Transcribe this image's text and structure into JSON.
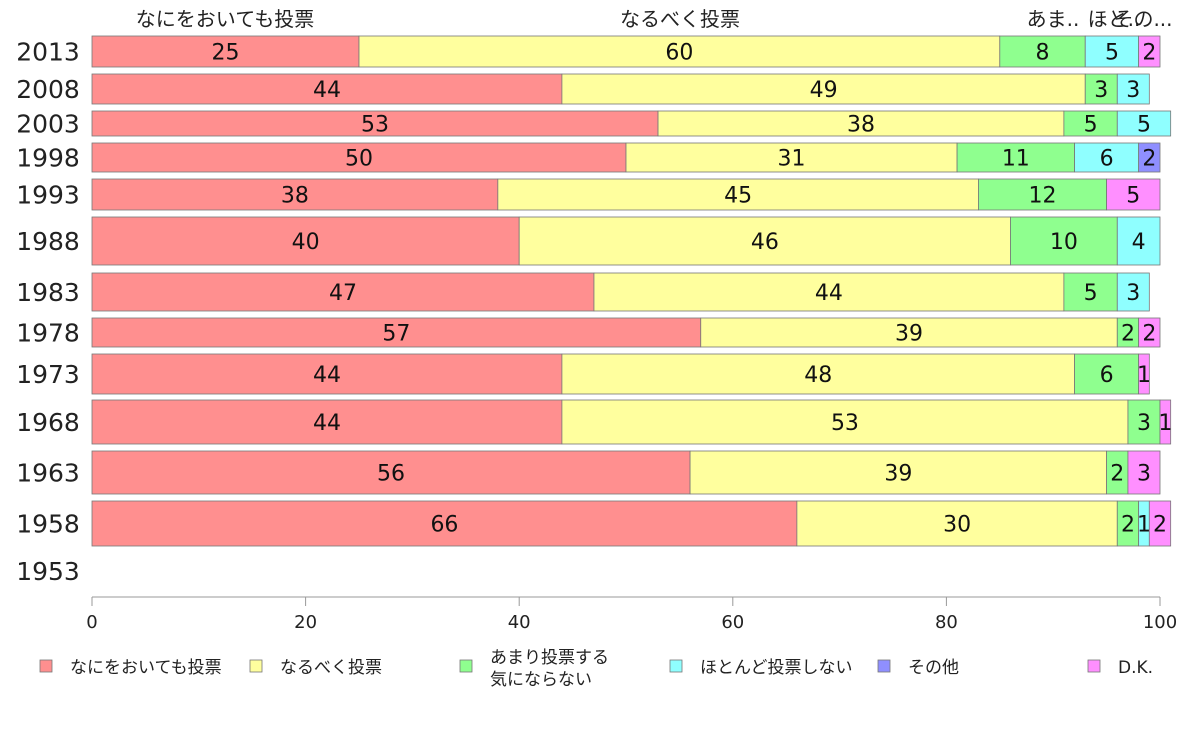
{
  "chart_data": {
    "type": "bar",
    "orientation": "horizontal",
    "stacked": true,
    "categories": [
      "2013",
      "2008",
      "2003",
      "1998",
      "1993",
      "1988",
      "1983",
      "1978",
      "1973",
      "1968",
      "1963",
      "1958",
      "1953"
    ],
    "series": [
      {
        "name": "なにをおいても投票",
        "color": "#ff8f8f",
        "values": [
          25,
          44,
          53,
          50,
          38,
          40,
          47,
          57,
          44,
          44,
          56,
          66,
          null
        ]
      },
      {
        "name": "なるべく投票",
        "color": "#ffff9e",
        "values": [
          60,
          49,
          38,
          31,
          45,
          46,
          44,
          39,
          48,
          53,
          39,
          30,
          null
        ]
      },
      {
        "name": "あまり投票する\n気にならない",
        "color": "#8fff8f",
        "values": [
          8,
          3,
          5,
          11,
          12,
          10,
          5,
          2,
          6,
          3,
          2,
          2,
          null
        ]
      },
      {
        "name": "ほとんど投票しない",
        "color": "#8fffff",
        "values": [
          5,
          3,
          5,
          6,
          0,
          4,
          3,
          0,
          0,
          0,
          0,
          1,
          null
        ]
      },
      {
        "name": "その他",
        "color": "#8f8fff",
        "values": [
          0,
          0,
          0,
          2,
          0,
          0,
          0,
          0,
          0,
          0,
          0,
          0,
          null
        ]
      },
      {
        "name": "D.K.",
        "color": "#ff8fff",
        "values": [
          2,
          0,
          0,
          0,
          5,
          0,
          0,
          2,
          1,
          1,
          3,
          2,
          null
        ]
      }
    ],
    "segment_labels": [
      [
        "25",
        "60",
        "8",
        "5",
        "",
        "2"
      ],
      [
        "44",
        "49",
        "3",
        "3",
        "",
        ""
      ],
      [
        "53",
        "38",
        "5",
        "5",
        "",
        ""
      ],
      [
        "50",
        "31",
        "11",
        "6",
        "2",
        ""
      ],
      [
        "38",
        "45",
        "12",
        "",
        "",
        "5"
      ],
      [
        "40",
        "46",
        "10",
        "4",
        "",
        ""
      ],
      [
        "47",
        "44",
        "5",
        "3",
        "",
        ""
      ],
      [
        "57",
        "39",
        "2",
        "",
        "",
        "2"
      ],
      [
        "44",
        "48",
        "6",
        "",
        "",
        "1"
      ],
      [
        "44",
        "53",
        "3",
        "",
        "",
        "1"
      ],
      [
        "56",
        "39",
        "2",
        "",
        "",
        "3"
      ],
      [
        "66",
        "30",
        "2",
        "1",
        "",
        "2"
      ],
      [
        "",
        "",
        "",
        "",
        "",
        ""
      ]
    ],
    "top_labels": [
      "なにをおいても投票",
      "なるべく投票",
      "あま..",
      "ほと..",
      "その..."
    ],
    "xlim": [
      0,
      100
    ],
    "xticks": [
      "0",
      "20",
      "40",
      "60",
      "80",
      "100"
    ],
    "legend_position": "bottom"
  }
}
